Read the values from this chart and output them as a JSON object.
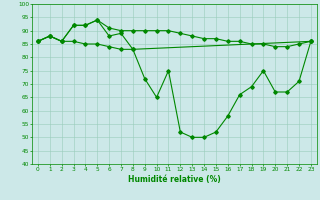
{
  "xlabel": "Humidité relative (%)",
  "background_color": "#cce8e8",
  "grid_color": "#99ccbb",
  "line_color": "#008800",
  "x": [
    0,
    1,
    2,
    3,
    4,
    5,
    6,
    7,
    8,
    9,
    10,
    11,
    12,
    13,
    14,
    15,
    16,
    17,
    18,
    19,
    20,
    21,
    22,
    23
  ],
  "line1": [
    86,
    88,
    86,
    92,
    92,
    94,
    88,
    89,
    83,
    72,
    65,
    75,
    52,
    50,
    50,
    52,
    58,
    66,
    69,
    75,
    67,
    67,
    71,
    86
  ],
  "line2": [
    86,
    88,
    86,
    92,
    92,
    94,
    91,
    90,
    90,
    90,
    90,
    90,
    89,
    88,
    87,
    87,
    86,
    86,
    85,
    85,
    84,
    84,
    85,
    86
  ],
  "line3_x": [
    0,
    1,
    2,
    3,
    4,
    5,
    6,
    7,
    8,
    23
  ],
  "line3_y": [
    86,
    88,
    86,
    86,
    85,
    85,
    84,
    83,
    83,
    86
  ],
  "ylim": [
    40,
    100
  ],
  "xlim_min": -0.5,
  "xlim_max": 23.5,
  "yticks": [
    40,
    45,
    50,
    55,
    60,
    65,
    70,
    75,
    80,
    85,
    90,
    95,
    100
  ],
  "xticks": [
    0,
    1,
    2,
    3,
    4,
    5,
    6,
    7,
    8,
    9,
    10,
    11,
    12,
    13,
    14,
    15,
    16,
    17,
    18,
    19,
    20,
    21,
    22,
    23
  ],
  "tick_fontsize": 4.2,
  "xlabel_fontsize": 5.5
}
